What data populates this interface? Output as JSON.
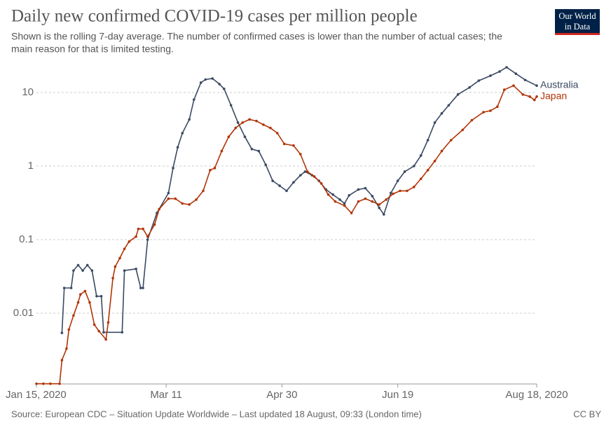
{
  "chart_data": {
    "type": "line",
    "title": "Daily new confirmed COVID-19 cases per million people",
    "subtitle": [
      "Shown is the rolling 7-day average. The number of confirmed cases is lower than the number of actual cases; the",
      "main reason for that is limited testing."
    ],
    "source": "Source: European CDC – Situation Update Worldwide – Last updated 18 August, 09:33 (London time)",
    "license": "CC BY",
    "logo": [
      "Our World",
      "in Data"
    ],
    "log_scale": true,
    "grid": true,
    "xlim": [
      "2020-01-15",
      "2020-08-18"
    ],
    "xticks": [
      {
        "value": "2020-01-15",
        "label": "Jan 15, 2020"
      },
      {
        "value": "2020-03-11",
        "label": "Mar 11"
      },
      {
        "value": "2020-04-30",
        "label": "Apr 30"
      },
      {
        "value": "2020-06-19",
        "label": "Jun 19"
      },
      {
        "value": "2020-08-18",
        "label": "Aug 18, 2020"
      }
    ],
    "ylim": [
      0.001,
      30
    ],
    "yticks": [
      0.01,
      0.1,
      1,
      10
    ],
    "series": [
      {
        "name": "Australia",
        "color": "#3b4a63",
        "x": [
          "2020-01-26",
          "2020-01-27",
          "2020-01-30",
          "2020-01-31",
          "2020-02-02",
          "2020-02-04",
          "2020-02-06",
          "2020-02-08",
          "2020-02-10",
          "2020-02-12",
          "2020-02-13",
          "2020-02-21",
          "2020-02-22",
          "2020-02-27",
          "2020-02-29",
          "2020-03-01",
          "2020-03-03",
          "2020-03-07",
          "2020-03-12",
          "2020-03-14",
          "2020-03-16",
          "2020-03-18",
          "2020-03-21",
          "2020-03-23",
          "2020-03-26",
          "2020-03-28",
          "2020-03-31",
          "2020-04-03",
          "2020-04-05",
          "2020-04-08",
          "2020-04-11",
          "2020-04-14",
          "2020-04-17",
          "2020-04-20",
          "2020-04-23",
          "2020-04-26",
          "2020-04-29",
          "2020-05-02",
          "2020-05-05",
          "2020-05-08",
          "2020-05-10",
          "2020-05-13",
          "2020-05-16",
          "2020-05-19",
          "2020-05-22",
          "2020-05-25",
          "2020-05-27",
          "2020-05-29",
          "2020-06-02",
          "2020-06-05",
          "2020-06-08",
          "2020-06-11",
          "2020-06-13",
          "2020-06-16",
          "2020-06-19",
          "2020-06-22",
          "2020-06-26",
          "2020-06-29",
          "2020-07-02",
          "2020-07-05",
          "2020-07-08",
          "2020-07-11",
          "2020-07-15",
          "2020-07-20",
          "2020-07-24",
          "2020-07-29",
          "2020-08-02",
          "2020-08-05",
          "2020-08-09",
          "2020-08-13",
          "2020-08-18"
        ],
        "values": [
          0.0054,
          0.022,
          0.022,
          0.038,
          0.045,
          0.038,
          0.045,
          0.038,
          0.017,
          0.017,
          0.0055,
          0.0055,
          0.038,
          0.04,
          0.022,
          0.022,
          0.1,
          0.23,
          0.43,
          0.94,
          1.8,
          2.8,
          4.3,
          8,
          13.6,
          15,
          15.5,
          13,
          11.2,
          6.7,
          3.9,
          2.5,
          1.7,
          1.6,
          1.04,
          0.63,
          0.54,
          0.46,
          0.6,
          0.75,
          0.84,
          0.75,
          0.63,
          0.48,
          0.41,
          0.35,
          0.31,
          0.4,
          0.48,
          0.5,
          0.39,
          0.27,
          0.22,
          0.43,
          0.63,
          0.84,
          1.0,
          1.39,
          2.25,
          3.9,
          5.2,
          6.7,
          9.4,
          11.7,
          14.5,
          16.9,
          19.3,
          22,
          18,
          14.8,
          12.4
        ]
      },
      {
        "name": "Japan",
        "color": "#b13507",
        "x": [
          "2020-01-15",
          "2020-01-18",
          "2020-01-21",
          "2020-01-25",
          "2020-01-26",
          "2020-01-28",
          "2020-01-29",
          "2020-01-31",
          "2020-02-02",
          "2020-02-03",
          "2020-02-05",
          "2020-02-07",
          "2020-02-09",
          "2020-02-11",
          "2020-02-14",
          "2020-02-15",
          "2020-02-17",
          "2020-02-18",
          "2020-02-20",
          "2020-02-22",
          "2020-02-24",
          "2020-02-27",
          "2020-02-28",
          "2020-03-01",
          "2020-03-03",
          "2020-03-06",
          "2020-03-08",
          "2020-03-12",
          "2020-03-15",
          "2020-03-18",
          "2020-03-21",
          "2020-03-24",
          "2020-03-27",
          "2020-03-30",
          "2020-04-01",
          "2020-04-04",
          "2020-04-07",
          "2020-04-10",
          "2020-04-13",
          "2020-04-16",
          "2020-04-19",
          "2020-04-22",
          "2020-04-25",
          "2020-04-28",
          "2020-05-01",
          "2020-05-05",
          "2020-05-08",
          "2020-05-11",
          "2020-05-14",
          "2020-05-17",
          "2020-05-20",
          "2020-05-23",
          "2020-05-27",
          "2020-05-30",
          "2020-06-02",
          "2020-06-05",
          "2020-06-08",
          "2020-06-11",
          "2020-06-14",
          "2020-06-17",
          "2020-06-20",
          "2020-06-23",
          "2020-06-26",
          "2020-06-29",
          "2020-07-02",
          "2020-07-05",
          "2020-07-08",
          "2020-07-12",
          "2020-07-17",
          "2020-07-21",
          "2020-07-26",
          "2020-07-29",
          "2020-08-01",
          "2020-08-04",
          "2020-08-08",
          "2020-08-12",
          "2020-08-15",
          "2020-08-17",
          "2020-08-18"
        ],
        "values": [
          0.0011,
          0.0011,
          0.0011,
          0.0011,
          0.0023,
          0.0033,
          0.006,
          0.0093,
          0.014,
          0.018,
          0.02,
          0.014,
          0.007,
          0.0057,
          0.0044,
          0.0075,
          0.03,
          0.043,
          0.056,
          0.075,
          0.094,
          0.11,
          0.14,
          0.14,
          0.11,
          0.16,
          0.26,
          0.36,
          0.36,
          0.31,
          0.3,
          0.35,
          0.46,
          0.88,
          0.94,
          1.6,
          2.5,
          3.3,
          3.9,
          4.3,
          4.1,
          3.65,
          3.3,
          2.8,
          2.0,
          1.9,
          1.45,
          0.84,
          0.72,
          0.58,
          0.41,
          0.33,
          0.29,
          0.23,
          0.33,
          0.36,
          0.33,
          0.3,
          0.35,
          0.42,
          0.46,
          0.46,
          0.52,
          0.67,
          0.88,
          1.17,
          1.6,
          2.25,
          3.1,
          4.2,
          5.4,
          5.65,
          6.4,
          10.9,
          12.4,
          9.4,
          8.8,
          7.9,
          8.8
        ]
      }
    ]
  }
}
